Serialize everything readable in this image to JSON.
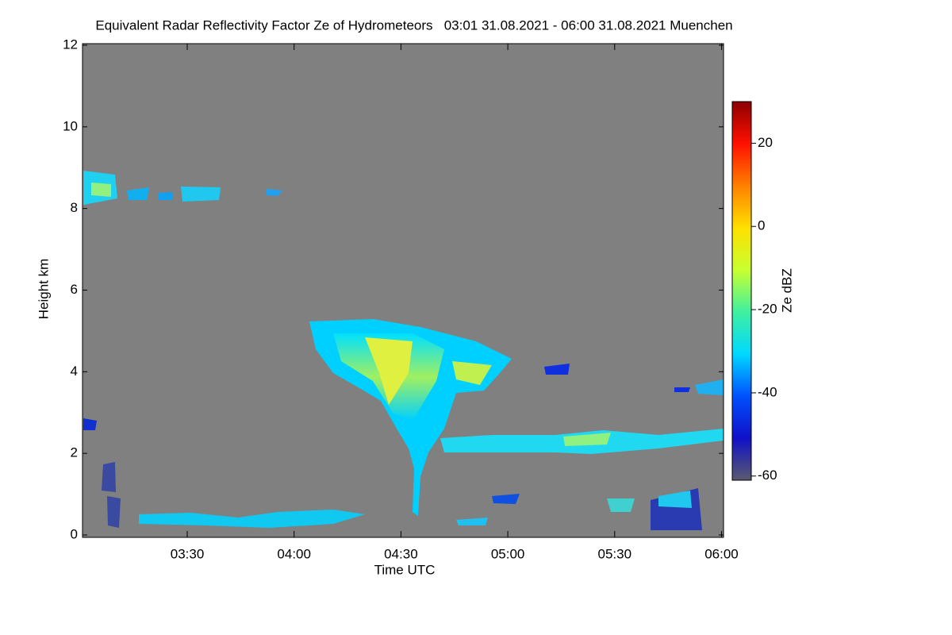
{
  "chart_data": {
    "type": "heatmap",
    "title": "Equivalent Radar Reflectivity Factor Ze of Hydrometeors   03:01 31.08.2021 - 06:00 31.08.2021 Muenchen",
    "xlabel": "Time UTC",
    "ylabel": "Height km",
    "xlim": [
      181,
      360
    ],
    "xticks": [
      {
        "value": 210,
        "label": "03:30"
      },
      {
        "value": 240,
        "label": "04:00"
      },
      {
        "value": 270,
        "label": "04:30"
      },
      {
        "value": 300,
        "label": "05:00"
      },
      {
        "value": 330,
        "label": "05:30"
      },
      {
        "value": 360,
        "label": "06:00"
      }
    ],
    "ylim": [
      0,
      12
    ],
    "yticks": [
      0,
      2,
      4,
      6,
      8,
      10,
      12
    ],
    "background": "#808080",
    "colorbar": {
      "label": "Ze dBZ",
      "lim": [
        -61,
        30
      ],
      "ticks": [
        -60,
        -40,
        -20,
        0,
        20
      ],
      "colors": [
        "#5a5a6e",
        "#1010c8",
        "#0050ff",
        "#00d8ff",
        "#40f0a0",
        "#c8ff30",
        "#ffe000",
        "#ff8000",
        "#ff1000",
        "#8c0000"
      ]
    }
  }
}
